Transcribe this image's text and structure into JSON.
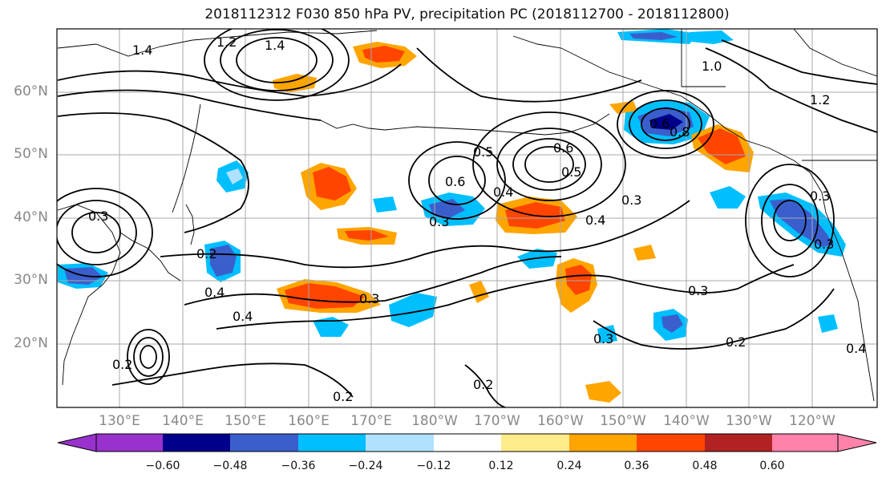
{
  "title": "2018112312 F030 850 hPa PV, precipitation PC (2018112700 - 2018112800)",
  "map": {
    "lat_labels": [
      "60°N",
      "50°N",
      "40°N",
      "30°N",
      "20°N"
    ],
    "lon_labels": [
      "130°E",
      "140°E",
      "150°E",
      "160°E",
      "170°E",
      "180°W",
      "170°W",
      "160°W",
      "150°W",
      "140°W",
      "130°W",
      "120°W"
    ],
    "contour_labels": [
      "1.4",
      "1.4",
      "1.2",
      "0.3",
      "0.5",
      "0.6",
      "0.6",
      "0.4",
      "0.3",
      "0.6",
      "0.5",
      "0.3",
      "0.4",
      "0.2",
      "0.4",
      "0.4",
      "0.3",
      "0.3",
      "0.2",
      "0.2",
      "0.3",
      "0.2",
      "0.2",
      "0.8",
      "1.0",
      "1.2",
      "0.3",
      "0.3",
      "0.4"
    ],
    "grid": true
  },
  "colorbar": {
    "ticks": [
      "−0.60",
      "−0.48",
      "−0.36",
      "−0.24",
      "−0.12",
      "0.12",
      "0.24",
      "0.36",
      "0.48",
      "0.60"
    ],
    "colors": [
      "#9932cc",
      "#00008b",
      "#3a5fcd",
      "#00bfff",
      "#b0e2ff",
      "#ffffff",
      "#ffec8b",
      "#ffa500",
      "#ff4500",
      "#b22222",
      "#ff82ab"
    ]
  }
}
